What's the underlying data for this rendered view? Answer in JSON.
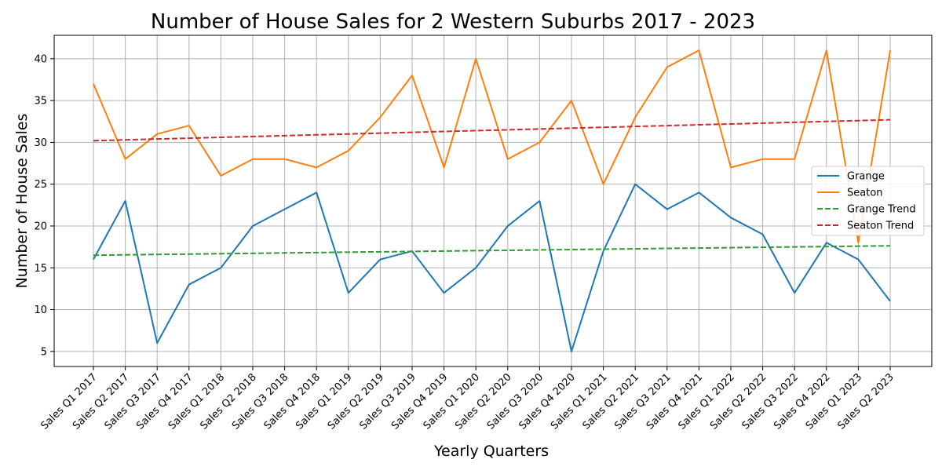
{
  "chart_data": {
    "type": "line",
    "title": "Number of House Sales for 2 Western Suburbs 2017 - 2023",
    "xlabel": "Yearly Quarters",
    "ylabel": "Number of House Sales",
    "categories": [
      "Sales Q1 2017",
      "Sales Q2 2017",
      "Sales Q3 2017",
      "Sales Q4 2017",
      "Sales Q1 2018",
      "Sales Q2 2018",
      "Sales Q3 2018",
      "Sales Q4 2018",
      "Sales Q1 2019",
      "Sales Q2 2019",
      "Sales Q3 2019",
      "Sales Q4 2019",
      "Sales Q1 2020",
      "Sales Q2 2020",
      "Sales Q3 2020",
      "Sales Q4 2020",
      "Sales Q1 2021",
      "Sales Q2 2021",
      "Sales Q3 2021",
      "Sales Q4 2021",
      "Sales Q1 2022",
      "Sales Q2 2022",
      "Sales Q3 2022",
      "Sales Q4 2022",
      "Sales Q1 2023",
      "Sales Q2 2023"
    ],
    "ylim": [
      3.2,
      42.8
    ],
    "yticks": [
      5,
      10,
      15,
      20,
      25,
      30,
      35,
      40
    ],
    "grid": true,
    "legend_position": "center-right",
    "series": [
      {
        "name": "Grange",
        "style": "solid",
        "color": "#1f77b4",
        "values": [
          16,
          23,
          6,
          13,
          15,
          20,
          22,
          24,
          12,
          16,
          17,
          12,
          15,
          20,
          23,
          5,
          17,
          25,
          22,
          24,
          21,
          19,
          12,
          18,
          16,
          11
        ]
      },
      {
        "name": "Seaton",
        "style": "solid",
        "color": "#ff7f0e",
        "values": [
          37,
          28,
          31,
          32,
          26,
          28,
          28,
          27,
          29,
          33,
          38,
          27,
          40,
          28,
          30,
          35,
          25,
          33,
          39,
          41,
          27,
          28,
          28,
          41,
          18,
          41
        ]
      },
      {
        "name": "Grange Trend",
        "style": "dashed",
        "color": "#2ca02c",
        "values": [
          16.5,
          16.55,
          16.6,
          16.64,
          16.69,
          16.73,
          16.78,
          16.82,
          16.87,
          16.91,
          16.96,
          17.0,
          17.05,
          17.09,
          17.14,
          17.18,
          17.23,
          17.27,
          17.32,
          17.36,
          17.41,
          17.45,
          17.5,
          17.54,
          17.59,
          17.63
        ]
      },
      {
        "name": "Seaton Trend",
        "style": "dashed",
        "color": "#d62728",
        "values": [
          30.2,
          30.3,
          30.4,
          30.5,
          30.6,
          30.7,
          30.8,
          30.9,
          31.0,
          31.1,
          31.2,
          31.3,
          31.4,
          31.5,
          31.6,
          31.7,
          31.8,
          31.9,
          32.0,
          32.1,
          32.2,
          32.3,
          32.4,
          32.5,
          32.6,
          32.7
        ]
      }
    ]
  }
}
